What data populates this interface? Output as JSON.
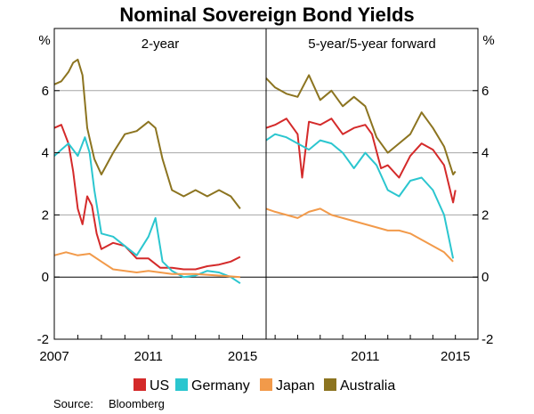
{
  "chart_data": {
    "type": "line",
    "title": "Nominal Sovereign Bond Yields",
    "y_unit": "%",
    "ylim": [
      -2,
      8
    ],
    "yticks": [
      -2,
      0,
      2,
      4,
      6
    ],
    "ytick_labels": [
      "-2",
      "0",
      "2",
      "4",
      "6"
    ],
    "gridlines": [
      2,
      4,
      6
    ],
    "source_label": "Source:",
    "source": "Bloomberg",
    "legend": [
      {
        "name": "US",
        "color": "#d42a2a"
      },
      {
        "name": "Germany",
        "color": "#2bc6cf"
      },
      {
        "name": "Japan",
        "color": "#f29a4a"
      },
      {
        "name": "Australia",
        "color": "#8c7420"
      }
    ],
    "panels": [
      {
        "title": "2-year",
        "xlim": [
          2007,
          2016
        ],
        "xticks": [
          2007,
          2011,
          2015
        ],
        "xtick_labels": [
          "2007",
          "2011",
          "2015"
        ],
        "series": [
          {
            "name": "US",
            "x": [
              2007.0,
              2007.3,
              2007.6,
              2007.8,
              2008.0,
              2008.2,
              2008.4,
              2008.6,
              2008.8,
              2009.0,
              2009.5,
              2010.0,
              2010.5,
              2011.0,
              2011.5,
              2012.0,
              2012.5,
              2013.0,
              2013.5,
              2014.0,
              2014.5,
              2014.9
            ],
            "y": [
              4.8,
              4.9,
              4.3,
              3.4,
              2.2,
              1.7,
              2.6,
              2.3,
              1.4,
              0.9,
              1.1,
              1.0,
              0.6,
              0.6,
              0.3,
              0.3,
              0.25,
              0.25,
              0.35,
              0.4,
              0.5,
              0.65
            ]
          },
          {
            "name": "Germany",
            "x": [
              2007.0,
              2007.3,
              2007.6,
              2008.0,
              2008.3,
              2008.5,
              2008.7,
              2009.0,
              2009.5,
              2010.0,
              2010.5,
              2011.0,
              2011.3,
              2011.6,
              2012.0,
              2012.5,
              2013.0,
              2013.5,
              2014.0,
              2014.5,
              2014.9
            ],
            "y": [
              3.9,
              4.1,
              4.3,
              3.9,
              4.5,
              4.0,
              2.8,
              1.4,
              1.3,
              1.0,
              0.7,
              1.3,
              1.9,
              0.5,
              0.2,
              0.0,
              0.05,
              0.2,
              0.15,
              0.0,
              -0.2
            ]
          },
          {
            "name": "Japan",
            "x": [
              2007.0,
              2007.5,
              2008.0,
              2008.5,
              2009.0,
              2009.5,
              2010.0,
              2010.5,
              2011.0,
              2012.0,
              2013.0,
              2014.0,
              2014.9
            ],
            "y": [
              0.7,
              0.8,
              0.7,
              0.75,
              0.5,
              0.25,
              0.2,
              0.15,
              0.2,
              0.1,
              0.1,
              0.05,
              0.0
            ]
          },
          {
            "name": "Australia",
            "x": [
              2007.0,
              2007.3,
              2007.6,
              2007.8,
              2008.0,
              2008.2,
              2008.4,
              2008.7,
              2009.0,
              2009.5,
              2010.0,
              2010.5,
              2011.0,
              2011.3,
              2011.6,
              2012.0,
              2012.5,
              2013.0,
              2013.5,
              2014.0,
              2014.5,
              2014.9
            ],
            "y": [
              6.2,
              6.3,
              6.6,
              6.9,
              7.0,
              6.5,
              4.8,
              3.8,
              3.3,
              4.0,
              4.6,
              4.7,
              5.0,
              4.8,
              3.8,
              2.8,
              2.6,
              2.8,
              2.6,
              2.8,
              2.6,
              2.2
            ]
          }
        ]
      },
      {
        "title": "5-year/5-year forward",
        "xlim": [
          2006.6,
          2016.0
        ],
        "xticks": [
          2011,
          2015
        ],
        "xtick_labels": [
          "2011",
          "2015"
        ],
        "series": [
          {
            "name": "US",
            "x": [
              2006.6,
              2007.0,
              2007.5,
              2008.0,
              2008.2,
              2008.5,
              2009.0,
              2009.5,
              2010.0,
              2010.5,
              2011.0,
              2011.3,
              2011.7,
              2012.0,
              2012.5,
              2013.0,
              2013.5,
              2014.0,
              2014.5,
              2014.9,
              2015.0
            ],
            "y": [
              4.8,
              4.9,
              5.1,
              4.6,
              3.2,
              5.0,
              4.9,
              5.1,
              4.6,
              4.8,
              4.9,
              4.6,
              3.5,
              3.6,
              3.2,
              3.9,
              4.3,
              4.1,
              3.6,
              2.4,
              2.8
            ]
          },
          {
            "name": "Germany",
            "x": [
              2006.6,
              2007.0,
              2007.5,
              2008.0,
              2008.5,
              2009.0,
              2009.5,
              2010.0,
              2010.5,
              2011.0,
              2011.5,
              2012.0,
              2012.5,
              2013.0,
              2013.5,
              2014.0,
              2014.5,
              2014.9
            ],
            "y": [
              4.4,
              4.6,
              4.5,
              4.3,
              4.1,
              4.4,
              4.3,
              4.0,
              3.5,
              4.0,
              3.6,
              2.8,
              2.6,
              3.1,
              3.2,
              2.8,
              2.0,
              0.6
            ]
          },
          {
            "name": "Japan",
            "x": [
              2006.6,
              2007.0,
              2007.5,
              2008.0,
              2008.5,
              2009.0,
              2009.5,
              2010.0,
              2010.5,
              2011.0,
              2011.5,
              2012.0,
              2012.5,
              2013.0,
              2013.5,
              2014.0,
              2014.5,
              2014.9
            ],
            "y": [
              2.2,
              2.1,
              2.0,
              1.9,
              2.1,
              2.2,
              2.0,
              1.9,
              1.8,
              1.7,
              1.6,
              1.5,
              1.5,
              1.4,
              1.2,
              1.0,
              0.8,
              0.5
            ]
          },
          {
            "name": "Australia",
            "x": [
              2006.6,
              2007.0,
              2007.5,
              2008.0,
              2008.5,
              2009.0,
              2009.5,
              2010.0,
              2010.5,
              2011.0,
              2011.5,
              2012.0,
              2012.5,
              2013.0,
              2013.5,
              2014.0,
              2014.5,
              2014.9,
              2015.0
            ],
            "y": [
              6.4,
              6.1,
              5.9,
              5.8,
              6.5,
              5.7,
              6.0,
              5.5,
              5.8,
              5.5,
              4.5,
              4.0,
              4.3,
              4.6,
              5.3,
              4.8,
              4.2,
              3.3,
              3.4
            ]
          }
        ]
      }
    ]
  }
}
